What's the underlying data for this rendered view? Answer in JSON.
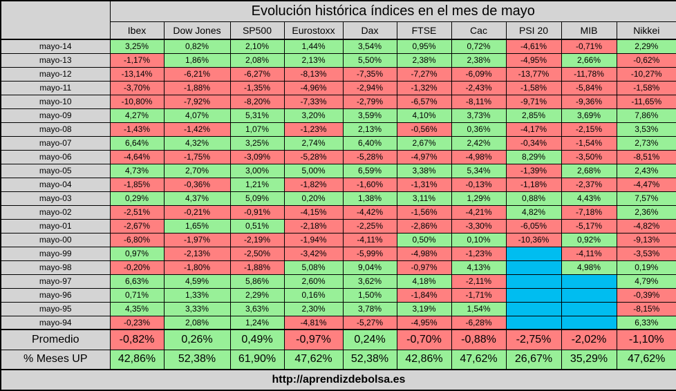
{
  "title": "Evolución histórica índices en el mes de mayo",
  "columns": [
    "Ibex",
    "Dow Jones",
    "SP500",
    "Eurostoxx",
    "Dax",
    "FTSE",
    "Cac",
    "PSI 20",
    "MIB",
    "Nikkei"
  ],
  "rows": [
    {
      "label": "mayo-14",
      "values": [
        "3,25%",
        "0,82%",
        "2,10%",
        "1,44%",
        "3,54%",
        "0,95%",
        "0,72%",
        "-4,61%",
        "-0,71%",
        "2,29%"
      ]
    },
    {
      "label": "mayo-13",
      "values": [
        "-1,17%",
        "1,86%",
        "2,08%",
        "2,13%",
        "5,50%",
        "2,38%",
        "2,38%",
        "-4,95%",
        "2,66%",
        "-0,62%"
      ]
    },
    {
      "label": "mayo-12",
      "values": [
        "-13,14%",
        "-6,21%",
        "-6,27%",
        "-8,13%",
        "-7,35%",
        "-7,27%",
        "-6,09%",
        "-13,77%",
        "-11,78%",
        "-10,27%"
      ]
    },
    {
      "label": "mayo-11",
      "values": [
        "-3,70%",
        "-1,88%",
        "-1,35%",
        "-4,96%",
        "-2,94%",
        "-1,32%",
        "-2,43%",
        "-1,58%",
        "-5,84%",
        "-1,58%"
      ]
    },
    {
      "label": "mayo-10",
      "values": [
        "-10,80%",
        "-7,92%",
        "-8,20%",
        "-7,33%",
        "-2,79%",
        "-6,57%",
        "-8,11%",
        "-9,71%",
        "-9,36%",
        "-11,65%"
      ]
    },
    {
      "label": "mayo-09",
      "values": [
        "4,27%",
        "4,07%",
        "5,31%",
        "3,20%",
        "3,59%",
        "4,10%",
        "3,73%",
        "2,85%",
        "3,69%",
        "7,86%"
      ]
    },
    {
      "label": "mayo-08",
      "values": [
        "-1,43%",
        "-1,42%",
        "1,07%",
        "-1,23%",
        "2,13%",
        "-0,56%",
        "0,36%",
        "-4,17%",
        "-2,15%",
        "3,53%"
      ]
    },
    {
      "label": "mayo-07",
      "values": [
        "6,64%",
        "4,32%",
        "3,25%",
        "2,74%",
        "6,40%",
        "2,67%",
        "2,42%",
        "-0,34%",
        "-1,54%",
        "2,73%"
      ]
    },
    {
      "label": "mayo-06",
      "values": [
        "-4,64%",
        "-1,75%",
        "-3,09%",
        "-5,28%",
        "-5,28%",
        "-4,97%",
        "-4,98%",
        "8,29%",
        "-3,50%",
        "-8,51%"
      ]
    },
    {
      "label": "mayo-05",
      "values": [
        "4,73%",
        "2,70%",
        "3,00%",
        "5,00%",
        "6,59%",
        "3,38%",
        "5,34%",
        "-1,39%",
        "2,68%",
        "2,43%"
      ]
    },
    {
      "label": "mayo-04",
      "values": [
        "-1,85%",
        "-0,36%",
        "1,21%",
        "-1,82%",
        "-1,60%",
        "-1,31%",
        "-0,13%",
        "-1,18%",
        "-2,37%",
        "-4,47%"
      ]
    },
    {
      "label": "mayo-03",
      "values": [
        "0,29%",
        "4,37%",
        "5,09%",
        "0,20%",
        "1,38%",
        "3,11%",
        "1,29%",
        "0,88%",
        "4,43%",
        "7,57%"
      ]
    },
    {
      "label": "mayo-02",
      "values": [
        "-2,51%",
        "-0,21%",
        "-0,91%",
        "-4,15%",
        "-4,42%",
        "-1,56%",
        "-4,21%",
        "4,82%",
        "-7,18%",
        "2,36%"
      ]
    },
    {
      "label": "mayo-01",
      "values": [
        "-2,67%",
        "1,65%",
        "0,51%",
        "-2,18%",
        "-2,25%",
        "-2,86%",
        "-3,30%",
        "-6,05%",
        "-5,17%",
        "-4,82%"
      ]
    },
    {
      "label": "mayo-00",
      "values": [
        "-6,80%",
        "-1,97%",
        "-2,19%",
        "-1,94%",
        "-4,11%",
        "0,50%",
        "0,10%",
        "-10,36%",
        "0,92%",
        "-9,13%"
      ]
    },
    {
      "label": "mayo-99",
      "values": [
        "0,97%",
        "-2,13%",
        "-2,50%",
        "-3,42%",
        "-5,99%",
        "-4,98%",
        "-1,23%",
        "",
        "-4,11%",
        "-3,53%"
      ]
    },
    {
      "label": "mayo-98",
      "values": [
        "-0,20%",
        "-1,80%",
        "-1,88%",
        "5,08%",
        "9,04%",
        "-0,97%",
        "4,13%",
        "",
        "4,98%",
        "0,19%"
      ]
    },
    {
      "label": "mayo-97",
      "values": [
        "6,63%",
        "4,59%",
        "5,86%",
        "2,60%",
        "3,62%",
        "4,18%",
        "-2,11%",
        "",
        "",
        "4,79%"
      ]
    },
    {
      "label": "mayo-96",
      "values": [
        "0,71%",
        "1,33%",
        "2,29%",
        "0,16%",
        "1,50%",
        "-1,84%",
        "-1,71%",
        "",
        "",
        "-0,39%"
      ]
    },
    {
      "label": "mayo-95",
      "values": [
        "4,35%",
        "3,33%",
        "3,63%",
        "2,30%",
        "3,78%",
        "3,19%",
        "1,54%",
        "",
        "",
        "-8,15%"
      ]
    },
    {
      "label": "mayo-94",
      "values": [
        "-0,23%",
        "2,08%",
        "1,24%",
        "-4,81%",
        "-5,27%",
        "-4,95%",
        "-6,28%",
        "",
        "",
        "6,33%"
      ]
    }
  ],
  "summary_rows": [
    {
      "label": "Promedio",
      "values": [
        "-0,82%",
        "0,26%",
        "0,49%",
        "-0,97%",
        "0,24%",
        "-0,70%",
        "-0,88%",
        "-2,75%",
        "-2,02%",
        "-1,10%"
      ]
    },
    {
      "label": "% Meses UP",
      "values": [
        "42,86%",
        "52,38%",
        "61,90%",
        "47,62%",
        "52,38%",
        "42,86%",
        "47,62%",
        "26,67%",
        "35,29%",
        "47,62%"
      ]
    }
  ],
  "footer": {
    "text": "http://aprendizdebolsa.es"
  },
  "colors": {
    "chrome": "#d4d4d4",
    "positive": "#98f098",
    "negative": "#ff8080",
    "empty": "#00bdf0"
  }
}
